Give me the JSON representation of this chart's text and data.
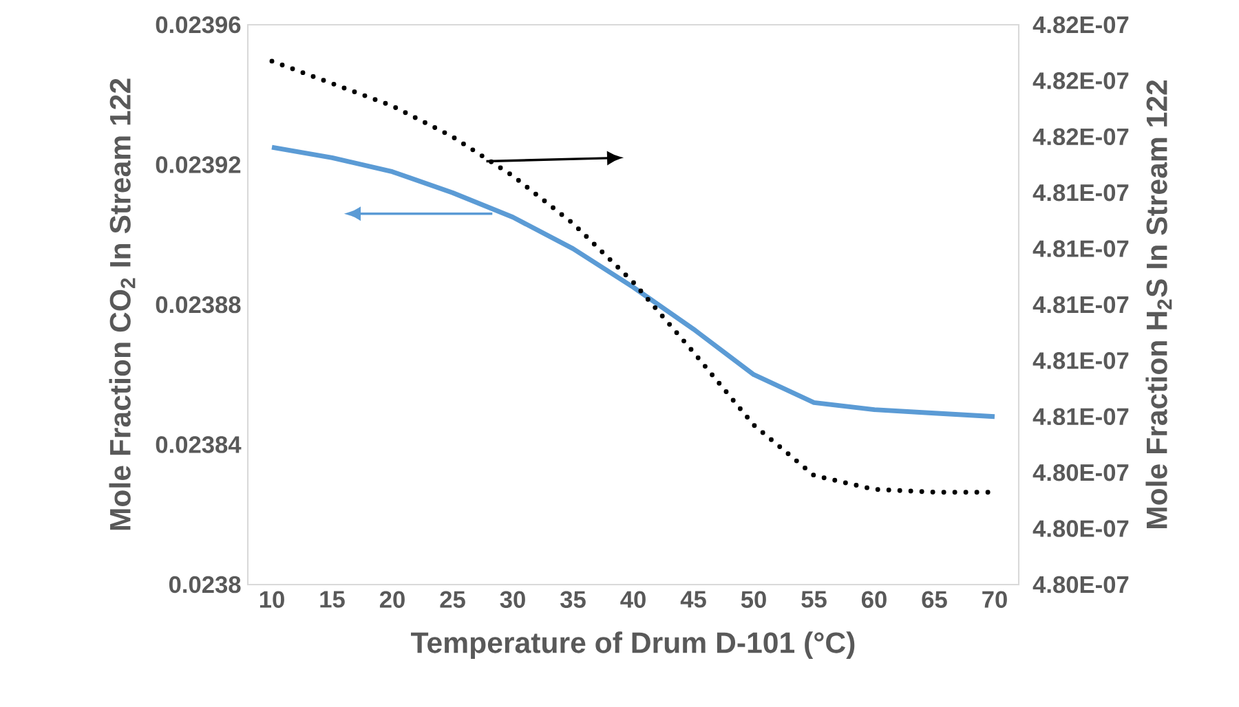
{
  "chart_data": {
    "type": "line",
    "xlabel": "Temperature of Drum D-101 (°C)",
    "ylabel": "Mole Fraction CO$_{2}$ In Stream 122",
    "y2label": "Mole Fraction H$_{2}$S In Stream 122",
    "x": [
      10,
      15,
      20,
      25,
      30,
      35,
      40,
      45,
      50,
      55,
      60,
      65,
      70
    ],
    "xlim": [
      8,
      72
    ],
    "xticks": [
      10,
      15,
      20,
      25,
      30,
      35,
      40,
      45,
      50,
      55,
      60,
      65,
      70
    ],
    "ylim": [
      0.0238,
      0.02396
    ],
    "yticks": [
      0.0238,
      0.02384,
      0.02388,
      0.02392,
      0.02396
    ],
    "y2lim": [
      4.7995e-07,
      4.8195e-07
    ],
    "y2ticks": [
      {
        "value": 4.7995e-07,
        "label": "4.80E-07"
      },
      {
        "value": 4.8015e-07,
        "label": "4.80E-07"
      },
      {
        "value": 4.8035e-07,
        "label": "4.80E-07"
      },
      {
        "value": 4.8055e-07,
        "label": "4.81E-07"
      },
      {
        "value": 4.8075e-07,
        "label": "4.81E-07"
      },
      {
        "value": 4.8095e-07,
        "label": "4.81E-07"
      },
      {
        "value": 4.8115e-07,
        "label": "4.81E-07"
      },
      {
        "value": 4.8135e-07,
        "label": "4.81E-07"
      },
      {
        "value": 4.8155e-07,
        "label": "4.82E-07"
      },
      {
        "value": 4.8175e-07,
        "label": "4.82E-07"
      },
      {
        "value": 4.8195e-07,
        "label": "4.82E-07"
      }
    ],
    "marker": "none",
    "series": [
      {
        "color": "#5b9bd5",
        "line_style": "solid",
        "values": [
          0.023925,
          0.023922,
          0.023918,
          0.023912,
          0.023905,
          0.023896,
          0.023885,
          0.023873,
          0.02386,
          0.023852,
          0.02385,
          0.023849,
          0.023848
        ]
      },
      {
        "color": "#000000",
        "line_style": "dotted",
        "axis": "y2",
        "values": [
          4.8182e-07,
          4.8174e-07,
          4.8166e-07,
          4.8155e-07,
          4.8141e-07,
          4.8124e-07,
          4.8103e-07,
          4.8078e-07,
          4.8052e-07,
          4.8034e-07,
          4.8029e-07,
          4.8028e-07,
          4.8028e-07
        ]
      }
    ]
  }
}
